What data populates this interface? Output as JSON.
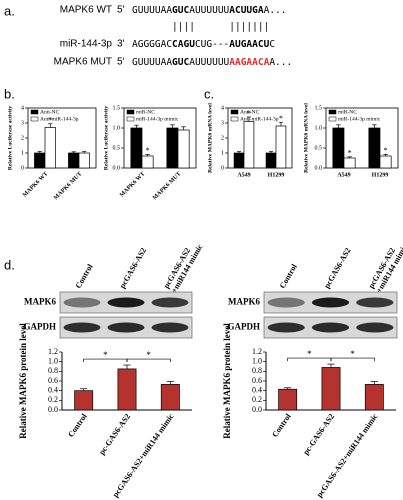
{
  "panel_labels": [
    "a.",
    "b.",
    "c.",
    "d."
  ],
  "alignment": {
    "rows": [
      {
        "name": "MAPK6 WT",
        "end": "5'",
        "segments": [
          {
            "text": "GUUUUAA"
          },
          {
            "text": "GUC",
            "bold": true
          },
          {
            "text": "AUUUUUU"
          },
          {
            "text": "ACUUGA",
            "bold": true
          },
          {
            "text": "A..."
          }
        ]
      },
      {
        "name": "miR-144-3p",
        "end": "3'",
        "segments": [
          {
            "text": "AGGGGAC"
          },
          {
            "text": "CAGU",
            "bold": true
          },
          {
            "text": "CUG---"
          },
          {
            "text": "AUGAACU",
            "bold": true
          },
          {
            "text": "C"
          }
        ]
      },
      {
        "name": "MAPK6 MUT",
        "end": "5'",
        "segments": [
          {
            "text": "GUUUUAA"
          },
          {
            "text": "GUC",
            "bold": true
          },
          {
            "text": "AUUUUUU"
          },
          {
            "text": "AAGAACA",
            "bold": true,
            "color": "#e03030"
          },
          {
            "text": "A..."
          }
        ]
      }
    ],
    "pairing": "       ||||      |||||||"
  },
  "blots": [
    {
      "rows": [
        "MAPK6",
        "GAPDH"
      ],
      "lanes": [
        [
          "Control"
        ],
        [
          "pcGAS6-AS2"
        ],
        [
          "pcGAS6-AS2",
          "+miR144 mimic"
        ]
      ]
    },
    {
      "rows": [
        "MAPK6",
        "GAPDH"
      ],
      "lanes": [
        [
          "Control"
        ],
        [
          "pcGAS6-AS2"
        ],
        [
          "pcGAS6-AS2",
          "+miR144 mimic"
        ]
      ]
    }
  ],
  "chart_data": [
    {
      "type": "bar",
      "ylabel": "Relative Luciferase activity",
      "categories": [
        "MAPK6 WT",
        "MAPK6 MUT"
      ],
      "series": [
        {
          "name": "Anti-NC",
          "color": "#000000",
          "values": [
            1.0,
            1.0
          ],
          "errors": [
            0.1,
            0.08
          ]
        },
        {
          "name": "Anti-miR-144-3p",
          "color": "#ffffff",
          "values": [
            2.7,
            1.0
          ],
          "errors": [
            0.25,
            0.1
          ]
        }
      ],
      "ylim": [
        0,
        4
      ],
      "yticks": [
        0,
        1,
        2,
        3,
        4
      ],
      "frame": true,
      "legend": "top-left",
      "annotations": [
        {
          "text": "*",
          "category": 0,
          "series": 1
        }
      ]
    },
    {
      "type": "bar",
      "ylabel": "Relative Luciferase activity",
      "categories": [
        "MAPK6 WT",
        "MAPK6 MUT"
      ],
      "series": [
        {
          "name": "miR-NC",
          "color": "#000000",
          "values": [
            1.0,
            1.0
          ],
          "errors": [
            0.07,
            0.08
          ]
        },
        {
          "name": "miR-144-3p mimic",
          "color": "#ffffff",
          "values": [
            0.3,
            0.95
          ],
          "errors": [
            0.04,
            0.08
          ]
        }
      ],
      "ylim": [
        0,
        1.5
      ],
      "yticks": [
        {
          "value": 0,
          "label": "0.0"
        },
        {
          "value": 0.5,
          "label": "0.5"
        },
        {
          "value": 1,
          "label": "1.0"
        },
        {
          "value": 1.5,
          "label": "1.5"
        }
      ],
      "frame": true,
      "legend": "top-left",
      "annotations": [
        {
          "text": "*",
          "category": 0,
          "series": 1
        }
      ]
    },
    {
      "type": "bar",
      "ylabel": "Relative MAPK6 mRNA level",
      "categories": [
        "A549",
        "H1299"
      ],
      "series": [
        {
          "name": "Anti-NC",
          "color": "#000000",
          "values": [
            1.0,
            1.0
          ],
          "errors": [
            0.1,
            0.1
          ]
        },
        {
          "name": "Anti-miR-144-3p",
          "color": "#ffffff",
          "values": [
            3.1,
            2.8
          ],
          "errors": [
            0.3,
            0.25
          ]
        }
      ],
      "ylim": [
        0,
        4
      ],
      "yticks": [
        0,
        1,
        2,
        3,
        4
      ],
      "frame": true,
      "legend": "top-left",
      "annotations": [
        {
          "text": "*",
          "category": 0,
          "series": 1
        },
        {
          "text": "*",
          "category": 1,
          "series": 1
        }
      ]
    },
    {
      "type": "bar",
      "ylabel": "Relative MAPK6 mRNA level",
      "categories": [
        "A549",
        "H1299"
      ],
      "series": [
        {
          "name": "miR-NC",
          "color": "#000000",
          "values": [
            1.0,
            1.0
          ],
          "errors": [
            0.08,
            0.08
          ]
        },
        {
          "name": "miR-144-3p mimic",
          "color": "#ffffff",
          "values": [
            0.25,
            0.3
          ],
          "errors": [
            0.03,
            0.04
          ]
        }
      ],
      "ylim": [
        0,
        1.5
      ],
      "yticks": [
        {
          "value": 0,
          "label": "0.0"
        },
        {
          "value": 0.5,
          "label": "0.5"
        },
        {
          "value": 1,
          "label": "1.0"
        },
        {
          "value": 1.5,
          "label": "1.5"
        }
      ],
      "frame": true,
      "legend": "top-left",
      "annotations": [
        {
          "text": "*",
          "category": 0,
          "series": 1
        },
        {
          "text": "*",
          "category": 1,
          "series": 1
        }
      ]
    },
    {
      "type": "bar",
      "ylabel": "Relative MAPK6 protein level",
      "categories": [
        "Control",
        "pc-GAS6-AS2",
        "pcGAS6-AS2+miR144 mimic"
      ],
      "series": [
        {
          "color": "#b5332e",
          "values": [
            0.4,
            0.85,
            0.53
          ],
          "errors": [
            0.04,
            0.08,
            0.06
          ]
        }
      ],
      "ylim": [
        0,
        1.2
      ],
      "yticks": [
        {
          "value": 0,
          "label": "0.0"
        },
        {
          "value": 0.2,
          "label": "0.2"
        },
        {
          "value": 0.4,
          "label": "0.4"
        },
        {
          "value": 0.6,
          "label": "0.6"
        },
        {
          "value": 0.8,
          "label": "0.8"
        },
        {
          "value": 1,
          "label": "1.0"
        },
        {
          "value": 1.2,
          "label": "1.2"
        }
      ],
      "frame": false,
      "annotations": [
        {
          "text": "*",
          "from": 0,
          "to": 1
        },
        {
          "text": "*",
          "from": 1,
          "to": 2
        }
      ]
    },
    {
      "type": "bar",
      "ylabel": "Relative MAPK6 protein level",
      "categories": [
        "Control",
        "pc-GAS6-AS2",
        "pcGAS6-AS2+miR144 mimic"
      ],
      "series": [
        {
          "color": "#b5332e",
          "values": [
            0.43,
            0.88,
            0.53
          ],
          "errors": [
            0.03,
            0.07,
            0.06
          ]
        }
      ],
      "ylim": [
        0,
        1.2
      ],
      "yticks": [
        {
          "value": 0,
          "label": "0.0"
        },
        {
          "value": 0.2,
          "label": "0.2"
        },
        {
          "value": 0.4,
          "label": "0.4"
        },
        {
          "value": 0.6,
          "label": "0.6"
        },
        {
          "value": 0.8,
          "label": "0.8"
        },
        {
          "value": 1,
          "label": "1.0"
        },
        {
          "value": 1.2,
          "label": "1.2"
        }
      ],
      "frame": false,
      "annotations": [
        {
          "text": "*",
          "from": 0,
          "to": 1
        },
        {
          "text": "*",
          "from": 1,
          "to": 2
        }
      ]
    }
  ]
}
